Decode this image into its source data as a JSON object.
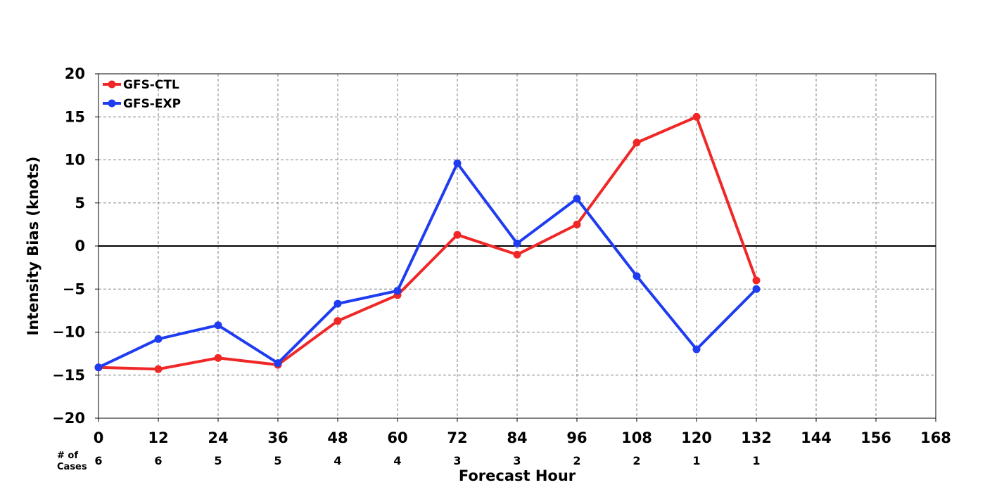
{
  "chart_data": {
    "type": "line",
    "title": "",
    "xlabel": "Forecast Hour",
    "ylabel": "Intensity Bias (knots)",
    "xlim": [
      0,
      168
    ],
    "ylim": [
      -20,
      20
    ],
    "x_ticks": [
      0,
      12,
      24,
      36,
      48,
      60,
      72,
      84,
      96,
      108,
      120,
      132,
      144,
      156,
      168
    ],
    "y_ticks": [
      -20,
      -15,
      -10,
      -5,
      0,
      5,
      10,
      15,
      20
    ],
    "y_tick_labels": [
      "−20",
      "−15",
      "−10",
      "−5",
      "0",
      "5",
      "10",
      "15",
      "20"
    ],
    "grid": true,
    "zero_line": true,
    "legend_position": "top-left",
    "series": [
      {
        "name": "GFS-CTL",
        "color": "#f02727",
        "x": [
          0,
          12,
          24,
          36,
          48,
          60,
          72,
          84,
          96,
          108,
          120,
          132
        ],
        "values": [
          -14.1,
          -14.3,
          -13.0,
          -13.8,
          -8.7,
          -5.7,
          1.3,
          -1.0,
          2.5,
          12.0,
          15.0,
          -4.0
        ]
      },
      {
        "name": "GFS-EXP",
        "color": "#1f3cf0",
        "x": [
          0,
          12,
          24,
          36,
          48,
          60,
          72,
          84,
          96,
          108,
          120,
          132
        ],
        "values": [
          -14.1,
          -10.8,
          -9.2,
          -13.6,
          -6.7,
          -5.2,
          9.6,
          0.3,
          5.5,
          -3.5,
          -12.0,
          -5.0
        ]
      }
    ],
    "cases": {
      "label_line1": "# of",
      "label_line2": "Cases",
      "x": [
        0,
        12,
        24,
        36,
        48,
        60,
        72,
        84,
        96,
        108,
        120,
        132
      ],
      "counts": [
        "6",
        "6",
        "5",
        "5",
        "4",
        "4",
        "3",
        "3",
        "2",
        "2",
        "1",
        "1"
      ]
    }
  }
}
